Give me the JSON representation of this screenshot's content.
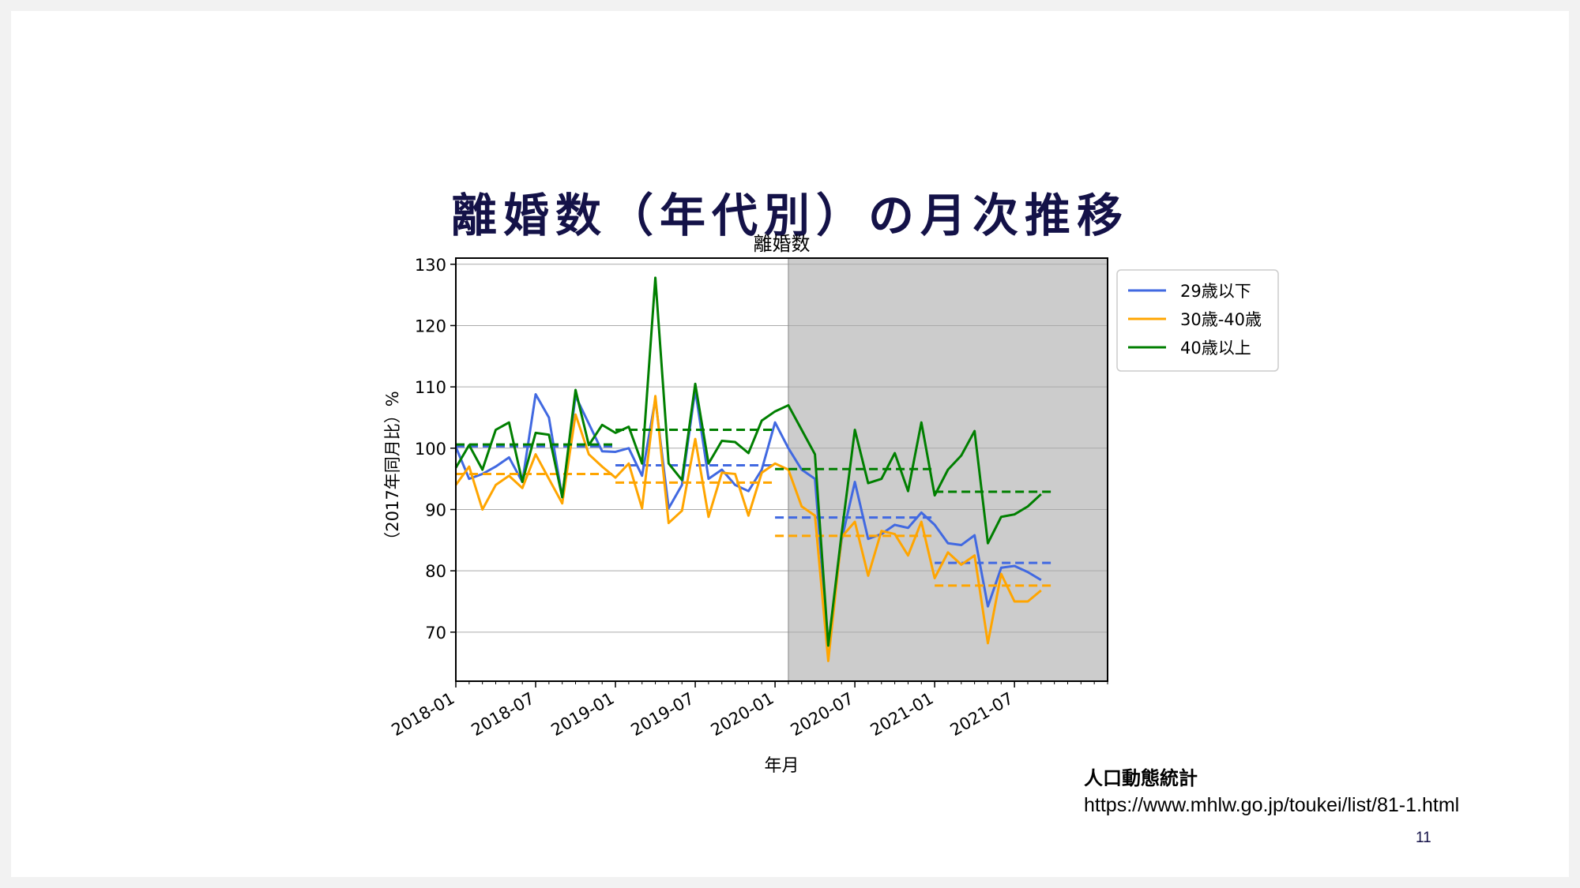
{
  "slide": {
    "title": "離婚数（年代別）の月次推移",
    "source_name": "人口動態統計",
    "source_url": "https://www.mhlw.go.jp/toukei/list/81-1.html",
    "page_number": "11"
  },
  "chart_data": {
    "type": "line",
    "title": "離婚数",
    "xlabel": "年月",
    "ylabel": "（2017年同月比）%",
    "ylim": [
      62,
      131
    ],
    "xlim": [
      "2018-01",
      "2022-02"
    ],
    "yticks": [
      70,
      80,
      90,
      100,
      110,
      120,
      130
    ],
    "xticks": [
      "2018-01",
      "2018-07",
      "2019-01",
      "2019-07",
      "2020-01",
      "2020-07",
      "2021-01",
      "2021-07"
    ],
    "grid": "horizontal",
    "legend": "outside-upper-right",
    "shaded_region": {
      "from": "2020-02",
      "to": "2022-02",
      "color": "#cccccc"
    },
    "x": [
      "2018-01",
      "2018-02",
      "2018-03",
      "2018-04",
      "2018-05",
      "2018-06",
      "2018-07",
      "2018-08",
      "2018-09",
      "2018-10",
      "2018-11",
      "2018-12",
      "2019-01",
      "2019-02",
      "2019-03",
      "2019-04",
      "2019-05",
      "2019-06",
      "2019-07",
      "2019-08",
      "2019-09",
      "2019-10",
      "2019-11",
      "2019-12",
      "2020-01",
      "2020-02",
      "2020-03",
      "2020-04",
      "2020-05",
      "2020-06",
      "2020-07",
      "2020-08",
      "2020-09",
      "2020-10",
      "2020-11",
      "2020-12",
      "2021-01",
      "2021-02",
      "2021-03",
      "2021-04",
      "2021-05",
      "2021-06",
      "2021-07",
      "2021-08",
      "2021-09"
    ],
    "series": [
      {
        "name": "29歳以下",
        "color": "#4169e1",
        "values": [
          100.2,
          95.0,
          95.8,
          97.0,
          98.5,
          94.5,
          108.8,
          105.0,
          92.0,
          108.5,
          104.0,
          99.5,
          99.4,
          100.0,
          95.5,
          108.0,
          90.2,
          94.0,
          109.5,
          95.0,
          96.5,
          94.0,
          93.0,
          96.5,
          104.2,
          100.0,
          96.5,
          95.0,
          67.8,
          85.0,
          94.5,
          85.2,
          86.0,
          87.5,
          87.0,
          89.5,
          87.5,
          84.5,
          84.2,
          85.8,
          74.2,
          80.5,
          80.8,
          79.8,
          78.5
        ],
        "period_means": [
          {
            "from": "2018-01",
            "to": "2019-01",
            "value": 100.3
          },
          {
            "from": "2019-01",
            "to": "2020-01",
            "value": 97.2
          },
          {
            "from": "2020-01",
            "to": "2021-01",
            "value": 88.7
          },
          {
            "from": "2021-01",
            "to": "2021-10",
            "value": 81.3
          }
        ]
      },
      {
        "name": "30歳-40歳",
        "color": "#ffa500",
        "values": [
          94.0,
          97.0,
          90.0,
          94.0,
          95.5,
          93.5,
          99.0,
          95.0,
          91.0,
          105.5,
          99.0,
          97.0,
          95.2,
          97.5,
          90.2,
          108.5,
          87.8,
          89.8,
          101.5,
          88.8,
          96.0,
          95.8,
          89.0,
          96.0,
          97.5,
          96.5,
          90.5,
          89.0,
          65.3,
          85.5,
          88.0,
          79.2,
          86.5,
          86.0,
          82.5,
          88.0,
          78.8,
          83.0,
          81.0,
          82.5,
          68.2,
          79.5,
          75.0,
          75.0,
          76.8
        ],
        "period_means": [
          {
            "from": "2018-01",
            "to": "2019-01",
            "value": 95.8
          },
          {
            "from": "2019-01",
            "to": "2020-01",
            "value": 94.4
          },
          {
            "from": "2020-01",
            "to": "2021-01",
            "value": 85.7
          },
          {
            "from": "2021-01",
            "to": "2021-10",
            "value": 77.6
          }
        ]
      },
      {
        "name": "40歳以上",
        "color": "#007f00",
        "values": [
          96.8,
          100.5,
          96.5,
          103.0,
          104.2,
          94.5,
          102.5,
          102.2,
          92.0,
          109.5,
          100.5,
          103.8,
          102.5,
          103.5,
          97.5,
          127.8,
          97.5,
          94.8,
          110.5,
          97.5,
          101.2,
          101.0,
          99.2,
          104.5,
          106.0,
          107.0,
          103.0,
          99.0,
          67.8,
          86.0,
          103.0,
          94.3,
          95.0,
          99.2,
          93.0,
          104.2,
          92.3,
          96.5,
          98.8,
          102.8,
          84.5,
          88.8,
          89.2,
          90.5,
          92.5
        ],
        "period_means": [
          {
            "from": "2018-01",
            "to": "2019-01",
            "value": 100.6
          },
          {
            "from": "2019-01",
            "to": "2020-01",
            "value": 103.0
          },
          {
            "from": "2020-01",
            "to": "2021-01",
            "value": 96.6
          },
          {
            "from": "2021-01",
            "to": "2021-10",
            "value": 92.9
          }
        ]
      }
    ]
  }
}
